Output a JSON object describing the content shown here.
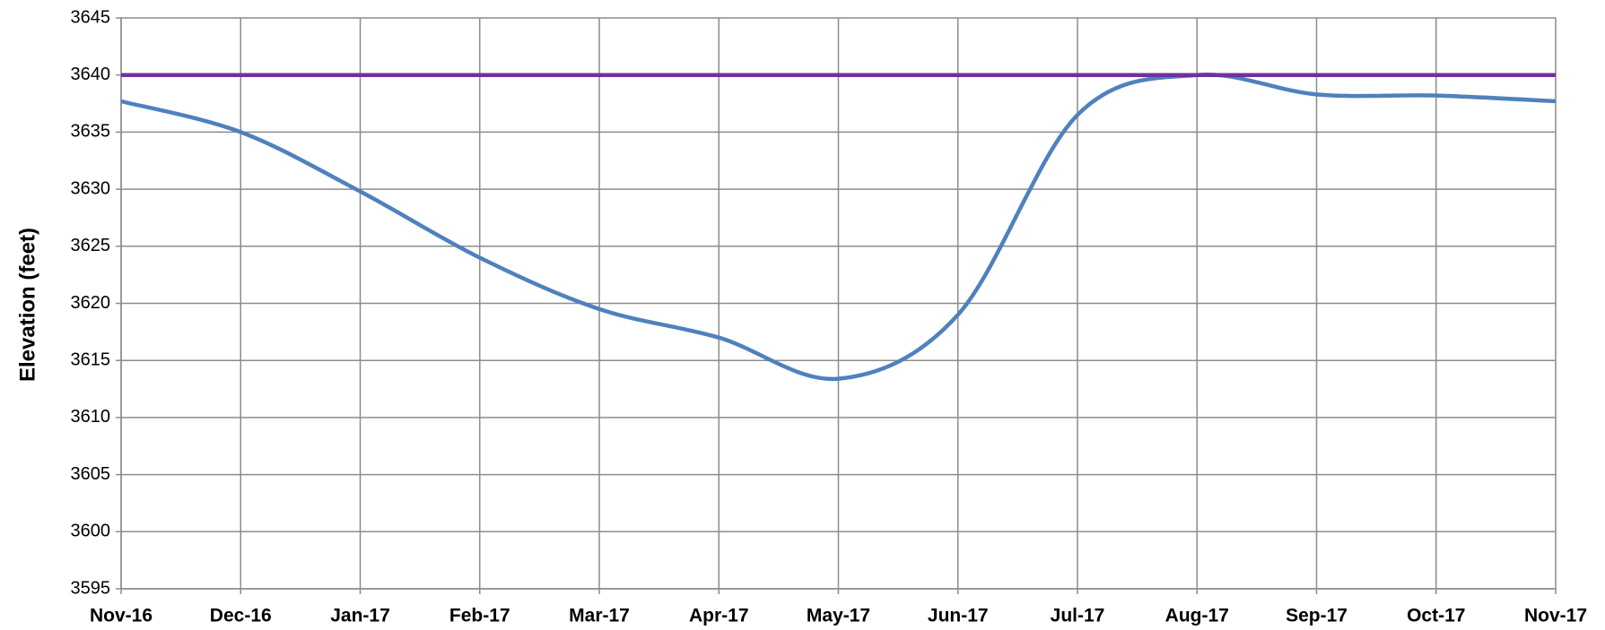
{
  "chart_data": {
    "type": "line",
    "y_label": "Elevation (feet)",
    "categories": [
      "Nov-16",
      "Dec-16",
      "Jan-17",
      "Feb-17",
      "Mar-17",
      "Apr-17",
      "May-17",
      "Jun-17",
      "Jul-17",
      "Aug-17",
      "Sep-17",
      "Oct-17",
      "Nov-17"
    ],
    "series": [
      {
        "color": "#4f81bd",
        "values": [
          3637.7,
          3635.0,
          3629.8,
          3624.0,
          3619.5,
          3617.0,
          3613.4,
          3619.0,
          3636.5,
          3640.0,
          3638.3,
          3638.2,
          3637.7
        ]
      },
      {
        "color": "#7030a0",
        "values": [
          3640,
          3640,
          3640,
          3640,
          3640,
          3640,
          3640,
          3640,
          3640,
          3640,
          3640,
          3640,
          3640
        ]
      }
    ],
    "ylim": [
      3595,
      3645
    ],
    "yticks": [
      3595,
      3600,
      3605,
      3610,
      3615,
      3620,
      3625,
      3630,
      3635,
      3640,
      3645
    ],
    "grid": true
  }
}
